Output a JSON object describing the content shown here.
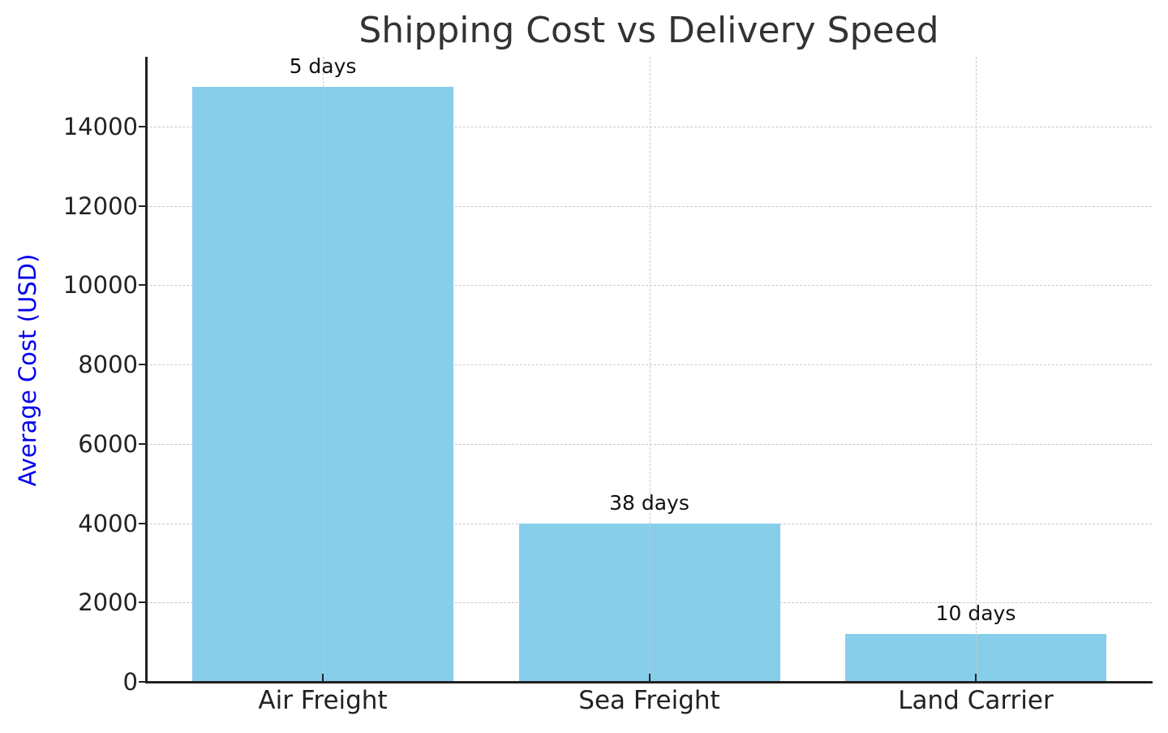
{
  "chart_data": {
    "type": "bar",
    "title": "Shipping Cost vs Delivery Speed",
    "xlabel": "",
    "ylabel": "Average Cost (USD)",
    "categories": [
      "Air Freight",
      "Sea Freight",
      "Land Carrier"
    ],
    "values": [
      15000,
      4000,
      1200
    ],
    "annotations": [
      "5 days",
      "38 days",
      "10 days"
    ],
    "ylim": [
      0,
      15750
    ],
    "yticks": [
      0,
      2000,
      4000,
      6000,
      8000,
      10000,
      12000,
      14000
    ],
    "grid": true,
    "bar_color": "#87ceeb",
    "ylabel_color": "#0000ee"
  },
  "title": "Shipping Cost vs Delivery Speed",
  "ylabel": "Average Cost (USD)",
  "yticks": [
    "0",
    "2000",
    "4000",
    "6000",
    "8000",
    "10000",
    "12000",
    "14000"
  ],
  "bars": [
    {
      "category": "Air Freight",
      "annotation": "5 days"
    },
    {
      "category": "Sea Freight",
      "annotation": "38 days"
    },
    {
      "category": "Land Carrier",
      "annotation": "10 days"
    }
  ]
}
